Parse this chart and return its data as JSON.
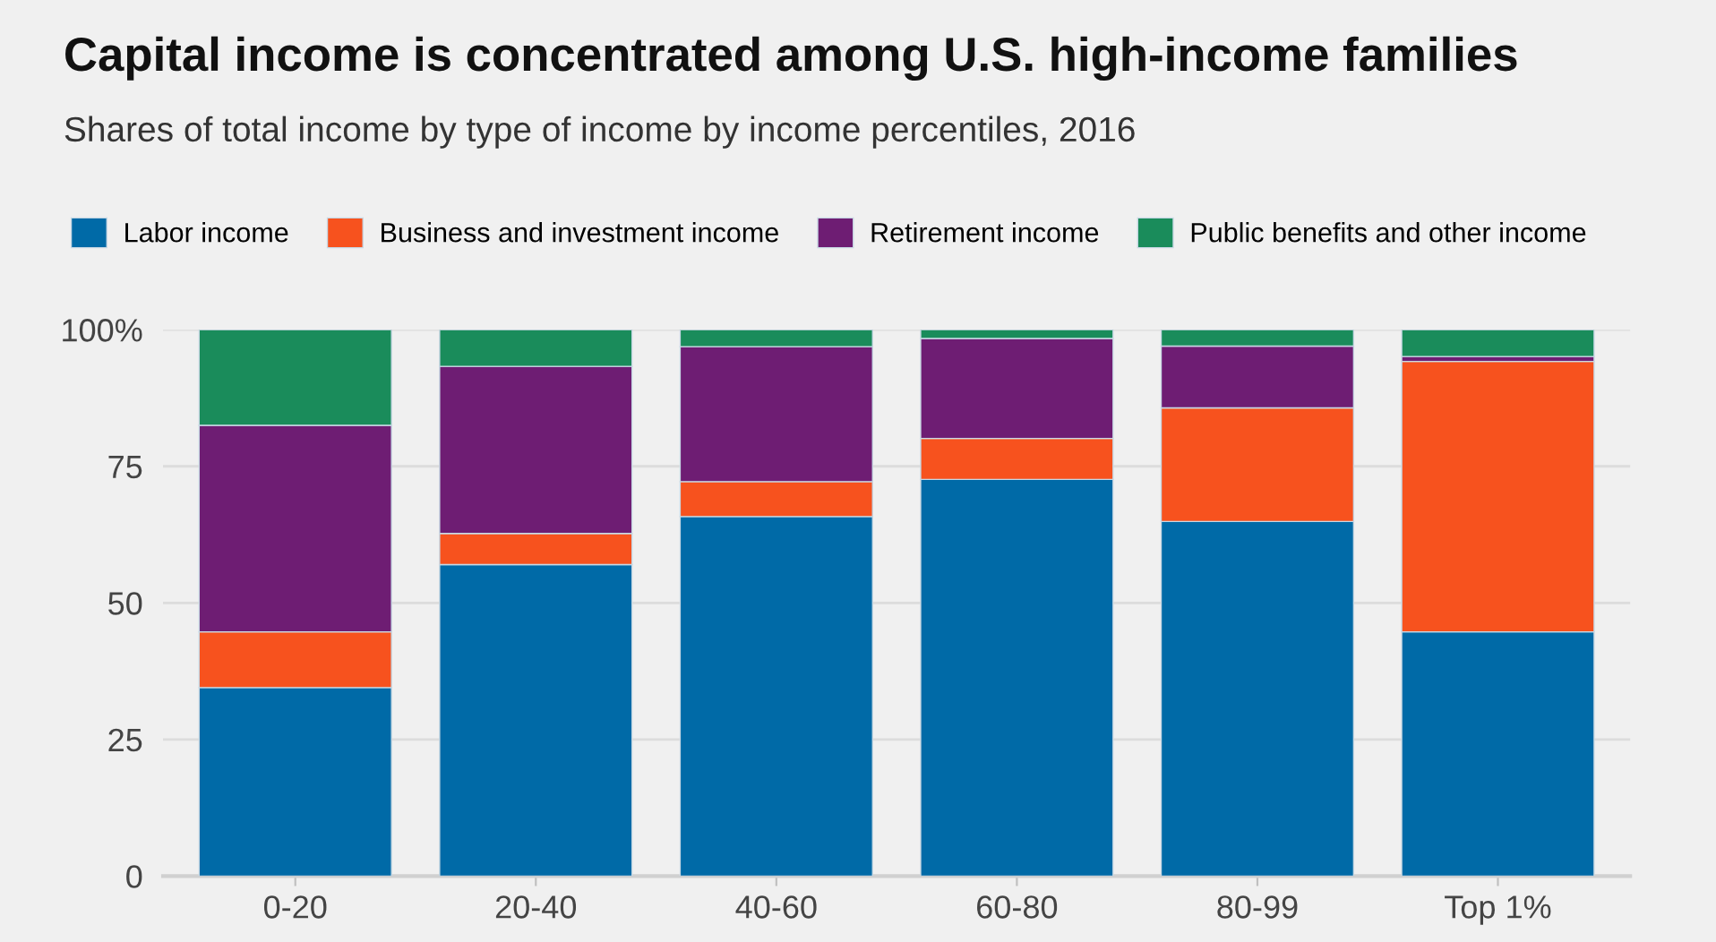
{
  "chart_data": {
    "type": "bar",
    "stacked": true,
    "title": "Capital income is concentrated among U.S. high-income families",
    "subtitle": "Shares of total income by type of income by income percentiles, 2016",
    "categories": [
      "0-20",
      "20-40",
      "40-60",
      "60-80",
      "80-99",
      "Top 1%"
    ],
    "series": [
      {
        "name": "Labor income",
        "color": "#006aa7",
        "values": [
          34.5,
          57.0,
          65.8,
          72.6,
          64.9,
          44.7
        ]
      },
      {
        "name": "Business and investment income",
        "color": "#f7521e",
        "values": [
          10.2,
          5.7,
          6.4,
          7.5,
          20.8,
          49.5
        ]
      },
      {
        "name": "Retirement income",
        "color": "#6e1d73",
        "values": [
          37.8,
          30.6,
          24.7,
          18.3,
          11.3,
          0.9
        ]
      },
      {
        "name": "Public benefits and other income",
        "color": "#1a8c5b",
        "values": [
          17.5,
          6.7,
          3.1,
          1.6,
          3.0,
          4.9
        ]
      }
    ],
    "ylim": [
      0,
      100
    ],
    "yticks": [
      0,
      25,
      50,
      75,
      {
        "value": 100,
        "label": "100%"
      }
    ],
    "grid": "y",
    "legend": "top left"
  }
}
